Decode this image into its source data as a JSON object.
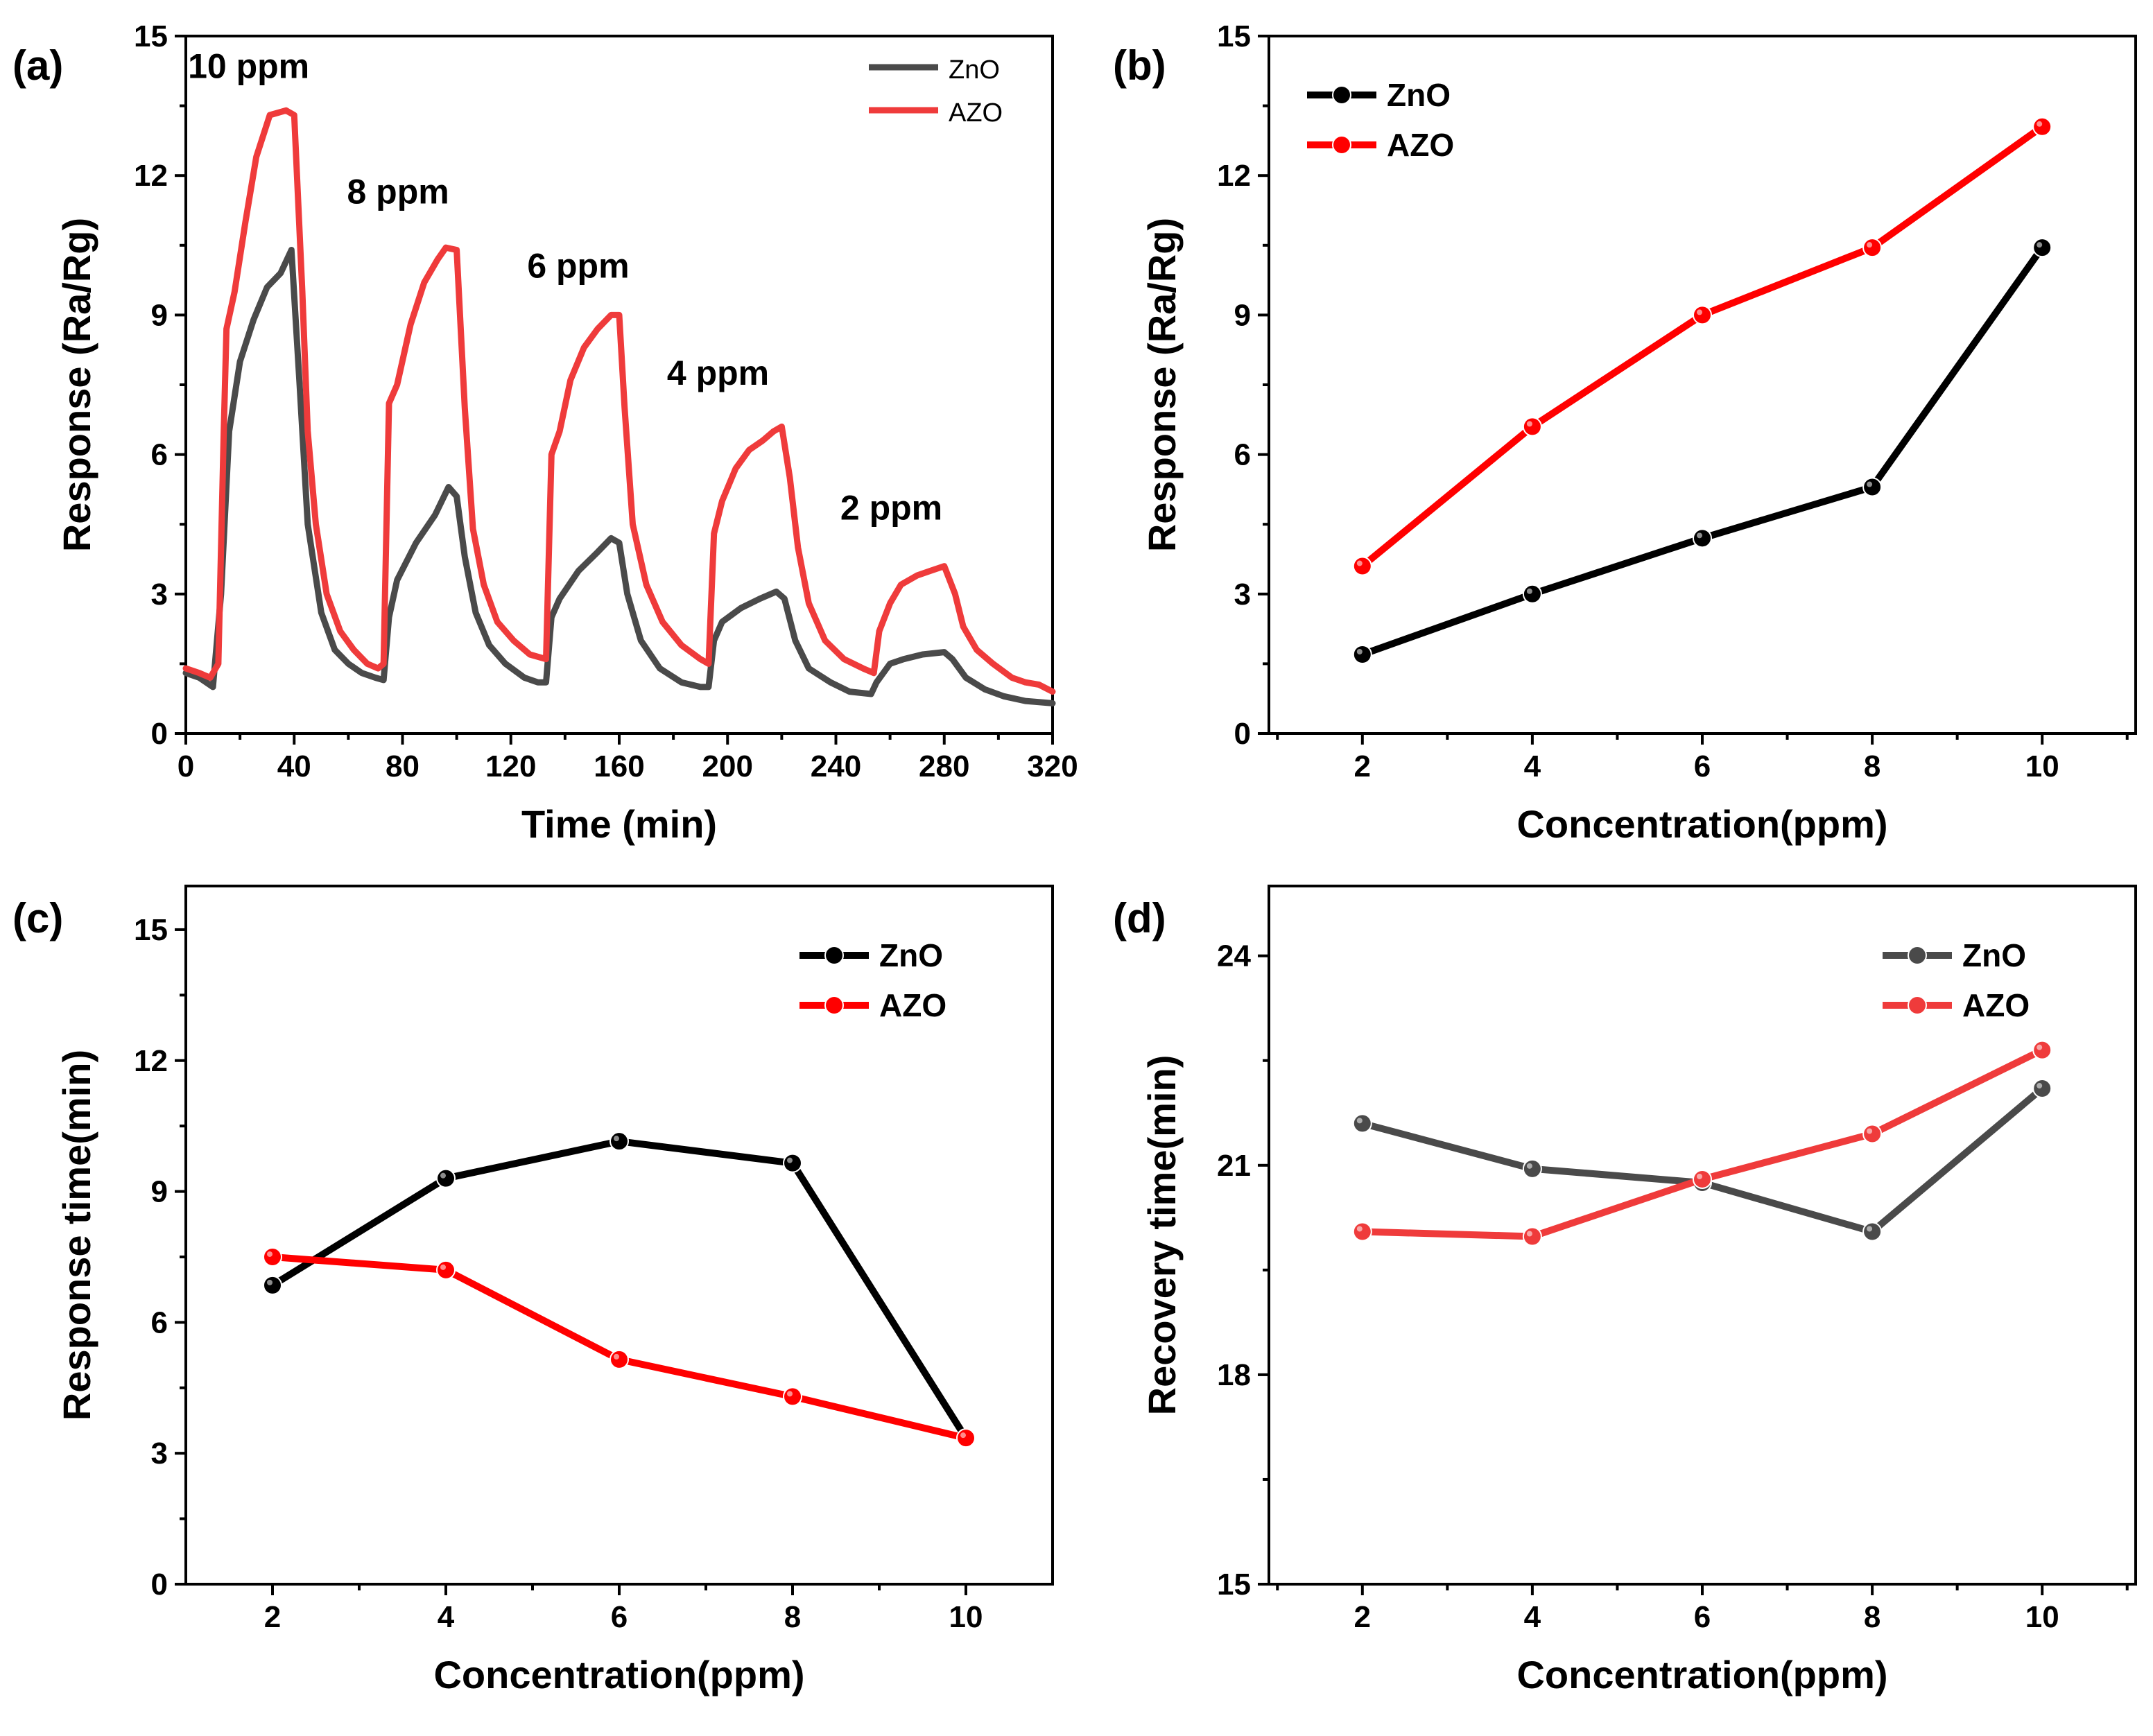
{
  "chart_data": [
    {
      "id": "a",
      "type": "line",
      "panel_label": "(a)",
      "xlabel": "Time (min)",
      "ylabel": "Response (Ra/Rg)",
      "xlim": [
        0,
        320
      ],
      "ylim": [
        0,
        15
      ],
      "xticks": [
        0,
        40,
        80,
        120,
        160,
        200,
        240,
        280,
        320
      ],
      "yticks": [
        0,
        3,
        6,
        9,
        12,
        15
      ],
      "legend_position": "top-right",
      "colors": {
        "ZnO": "#4a4a4a",
        "AZO": "#ef3b3b"
      },
      "annotations": [
        {
          "text": "10 ppm",
          "x": 36,
          "y": 14.1
        },
        {
          "text": "8 ppm",
          "x": 95,
          "y": 11.4
        },
        {
          "text": "6 ppm",
          "x": 150,
          "y": 9.8
        },
        {
          "text": "4 ppm",
          "x": 208,
          "y": 7.5
        },
        {
          "text": "2 ppm",
          "x": 272,
          "y": 4.6
        }
      ],
      "series": [
        {
          "name": "ZnO",
          "points": [
            [
              0,
              1.3
            ],
            [
              5,
              1.2
            ],
            [
              10,
              1.0
            ],
            [
              13,
              3.0
            ],
            [
              16,
              6.5
            ],
            [
              20,
              8.0
            ],
            [
              25,
              8.9
            ],
            [
              30,
              9.6
            ],
            [
              35,
              9.9
            ],
            [
              39,
              10.4
            ],
            [
              42,
              7.5
            ],
            [
              45,
              4.5
            ],
            [
              50,
              2.6
            ],
            [
              55,
              1.8
            ],
            [
              60,
              1.5
            ],
            [
              65,
              1.3
            ],
            [
              70,
              1.2
            ],
            [
              73,
              1.15
            ],
            [
              75,
              2.5
            ],
            [
              78,
              3.3
            ],
            [
              85,
              4.1
            ],
            [
              92,
              4.7
            ],
            [
              97,
              5.3
            ],
            [
              100,
              5.1
            ],
            [
              103,
              3.8
            ],
            [
              107,
              2.6
            ],
            [
              112,
              1.9
            ],
            [
              118,
              1.5
            ],
            [
              125,
              1.2
            ],
            [
              130,
              1.1
            ],
            [
              133,
              1.1
            ],
            [
              135,
              2.5
            ],
            [
              138,
              2.9
            ],
            [
              145,
              3.5
            ],
            [
              152,
              3.9
            ],
            [
              157,
              4.2
            ],
            [
              160,
              4.1
            ],
            [
              163,
              3.0
            ],
            [
              168,
              2.0
            ],
            [
              175,
              1.4
            ],
            [
              183,
              1.1
            ],
            [
              190,
              1.0
            ],
            [
              193,
              1.0
            ],
            [
              195,
              2.0
            ],
            [
              198,
              2.4
            ],
            [
              205,
              2.7
            ],
            [
              212,
              2.9
            ],
            [
              218,
              3.05
            ],
            [
              221,
              2.9
            ],
            [
              225,
              2.0
            ],
            [
              230,
              1.4
            ],
            [
              238,
              1.1
            ],
            [
              245,
              0.9
            ],
            [
              253,
              0.85
            ],
            [
              255,
              1.1
            ],
            [
              260,
              1.5
            ],
            [
              265,
              1.6
            ],
            [
              272,
              1.7
            ],
            [
              280,
              1.75
            ],
            [
              283,
              1.6
            ],
            [
              288,
              1.2
            ],
            [
              295,
              0.95
            ],
            [
              302,
              0.8
            ],
            [
              310,
              0.7
            ],
            [
              320,
              0.65
            ]
          ]
        },
        {
          "name": "AZO",
          "points": [
            [
              0,
              1.4
            ],
            [
              5,
              1.3
            ],
            [
              9,
              1.2
            ],
            [
              12,
              1.5
            ],
            [
              14,
              6.5
            ],
            [
              15,
              8.7
            ],
            [
              18,
              9.5
            ],
            [
              22,
              11.0
            ],
            [
              26,
              12.4
            ],
            [
              31,
              13.3
            ],
            [
              37,
              13.4
            ],
            [
              40,
              13.3
            ],
            [
              43,
              9.5
            ],
            [
              45,
              6.5
            ],
            [
              48,
              4.5
            ],
            [
              52,
              3.0
            ],
            [
              57,
              2.2
            ],
            [
              62,
              1.8
            ],
            [
              67,
              1.5
            ],
            [
              71,
              1.4
            ],
            [
              73,
              1.5
            ],
            [
              75,
              7.1
            ],
            [
              78,
              7.5
            ],
            [
              83,
              8.8
            ],
            [
              88,
              9.7
            ],
            [
              93,
              10.2
            ],
            [
              96,
              10.45
            ],
            [
              100,
              10.4
            ],
            [
              103,
              7.0
            ],
            [
              106,
              4.4
            ],
            [
              110,
              3.2
            ],
            [
              115,
              2.4
            ],
            [
              121,
              2.0
            ],
            [
              127,
              1.7
            ],
            [
              133,
              1.6
            ],
            [
              135,
              6.0
            ],
            [
              138,
              6.5
            ],
            [
              142,
              7.6
            ],
            [
              147,
              8.3
            ],
            [
              152,
              8.7
            ],
            [
              157,
              9.0
            ],
            [
              160,
              9.0
            ],
            [
              162,
              7.0
            ],
            [
              165,
              4.5
            ],
            [
              170,
              3.2
            ],
            [
              176,
              2.4
            ],
            [
              183,
              1.9
            ],
            [
              190,
              1.6
            ],
            [
              193,
              1.5
            ],
            [
              195,
              4.3
            ],
            [
              198,
              5.0
            ],
            [
              203,
              5.7
            ],
            [
              208,
              6.1
            ],
            [
              213,
              6.3
            ],
            [
              217,
              6.5
            ],
            [
              220,
              6.6
            ],
            [
              223,
              5.5
            ],
            [
              226,
              4.0
            ],
            [
              230,
              2.8
            ],
            [
              236,
              2.0
            ],
            [
              243,
              1.6
            ],
            [
              250,
              1.4
            ],
            [
              254,
              1.3
            ],
            [
              256,
              2.2
            ],
            [
              260,
              2.8
            ],
            [
              264,
              3.2
            ],
            [
              270,
              3.4
            ],
            [
              275,
              3.5
            ],
            [
              280,
              3.6
            ],
            [
              284,
              3.0
            ],
            [
              287,
              2.3
            ],
            [
              292,
              1.8
            ],
            [
              298,
              1.5
            ],
            [
              305,
              1.2
            ],
            [
              310,
              1.1
            ],
            [
              315,
              1.05
            ],
            [
              320,
              0.9
            ]
          ]
        }
      ]
    },
    {
      "id": "b",
      "type": "line",
      "panel_label": "(b)",
      "xlabel": "Concentration(ppm)",
      "ylabel": "Response (Ra/Rg)",
      "xlim": [
        0.9,
        11.1
      ],
      "ylim": [
        0,
        15
      ],
      "xticks": [
        2,
        4,
        6,
        8,
        10
      ],
      "yticks": [
        0,
        3,
        6,
        9,
        12,
        15
      ],
      "legend_position": "top-left",
      "colors": {
        "ZnO": "#000000",
        "AZO": "#ff0000"
      },
      "series": [
        {
          "name": "ZnO",
          "x": [
            2,
            4,
            6,
            8,
            10
          ],
          "y": [
            1.7,
            3.0,
            4.2,
            5.3,
            10.45
          ]
        },
        {
          "name": "AZO",
          "x": [
            2,
            4,
            6,
            8,
            10
          ],
          "y": [
            3.6,
            6.6,
            9.0,
            10.45,
            13.05
          ]
        }
      ]
    },
    {
      "id": "c",
      "type": "line",
      "panel_label": "(c)",
      "xlabel": "Concentration(ppm)",
      "ylabel": "Response time(min)",
      "xlim": [
        1,
        11
      ],
      "ylim": [
        0,
        16
      ],
      "xticks": [
        2,
        4,
        6,
        8,
        10
      ],
      "yticks": [
        0,
        3,
        6,
        9,
        12,
        15
      ],
      "legend_position": "top-right",
      "colors": {
        "ZnO": "#000000",
        "AZO": "#ff0000"
      },
      "series": [
        {
          "name": "ZnO",
          "x": [
            2,
            4,
            6,
            8,
            10
          ],
          "y": [
            6.85,
            9.3,
            10.15,
            9.65,
            3.35
          ]
        },
        {
          "name": "AZO",
          "x": [
            2,
            4,
            6,
            8,
            10
          ],
          "y": [
            7.5,
            7.2,
            5.15,
            4.3,
            3.35
          ]
        }
      ]
    },
    {
      "id": "d",
      "type": "line",
      "panel_label": "(d)",
      "xlabel": "Concentration(ppm)",
      "ylabel": "Recovery time(min)",
      "xlim": [
        0.9,
        11.1
      ],
      "ylim": [
        15,
        25
      ],
      "xticks": [
        2,
        4,
        6,
        8,
        10
      ],
      "yticks": [
        15,
        18,
        21,
        24
      ],
      "legend_position": "top-right",
      "colors": {
        "ZnO": "#4a4a4a",
        "AZO": "#ef3b3b"
      },
      "series": [
        {
          "name": "ZnO",
          "x": [
            2,
            4,
            6,
            8,
            10
          ],
          "y": [
            21.6,
            20.95,
            20.75,
            20.05,
            22.1
          ]
        },
        {
          "name": "AZO",
          "x": [
            2,
            4,
            6,
            8,
            10
          ],
          "y": [
            20.05,
            19.98,
            20.8,
            21.45,
            22.65
          ]
        }
      ]
    }
  ]
}
